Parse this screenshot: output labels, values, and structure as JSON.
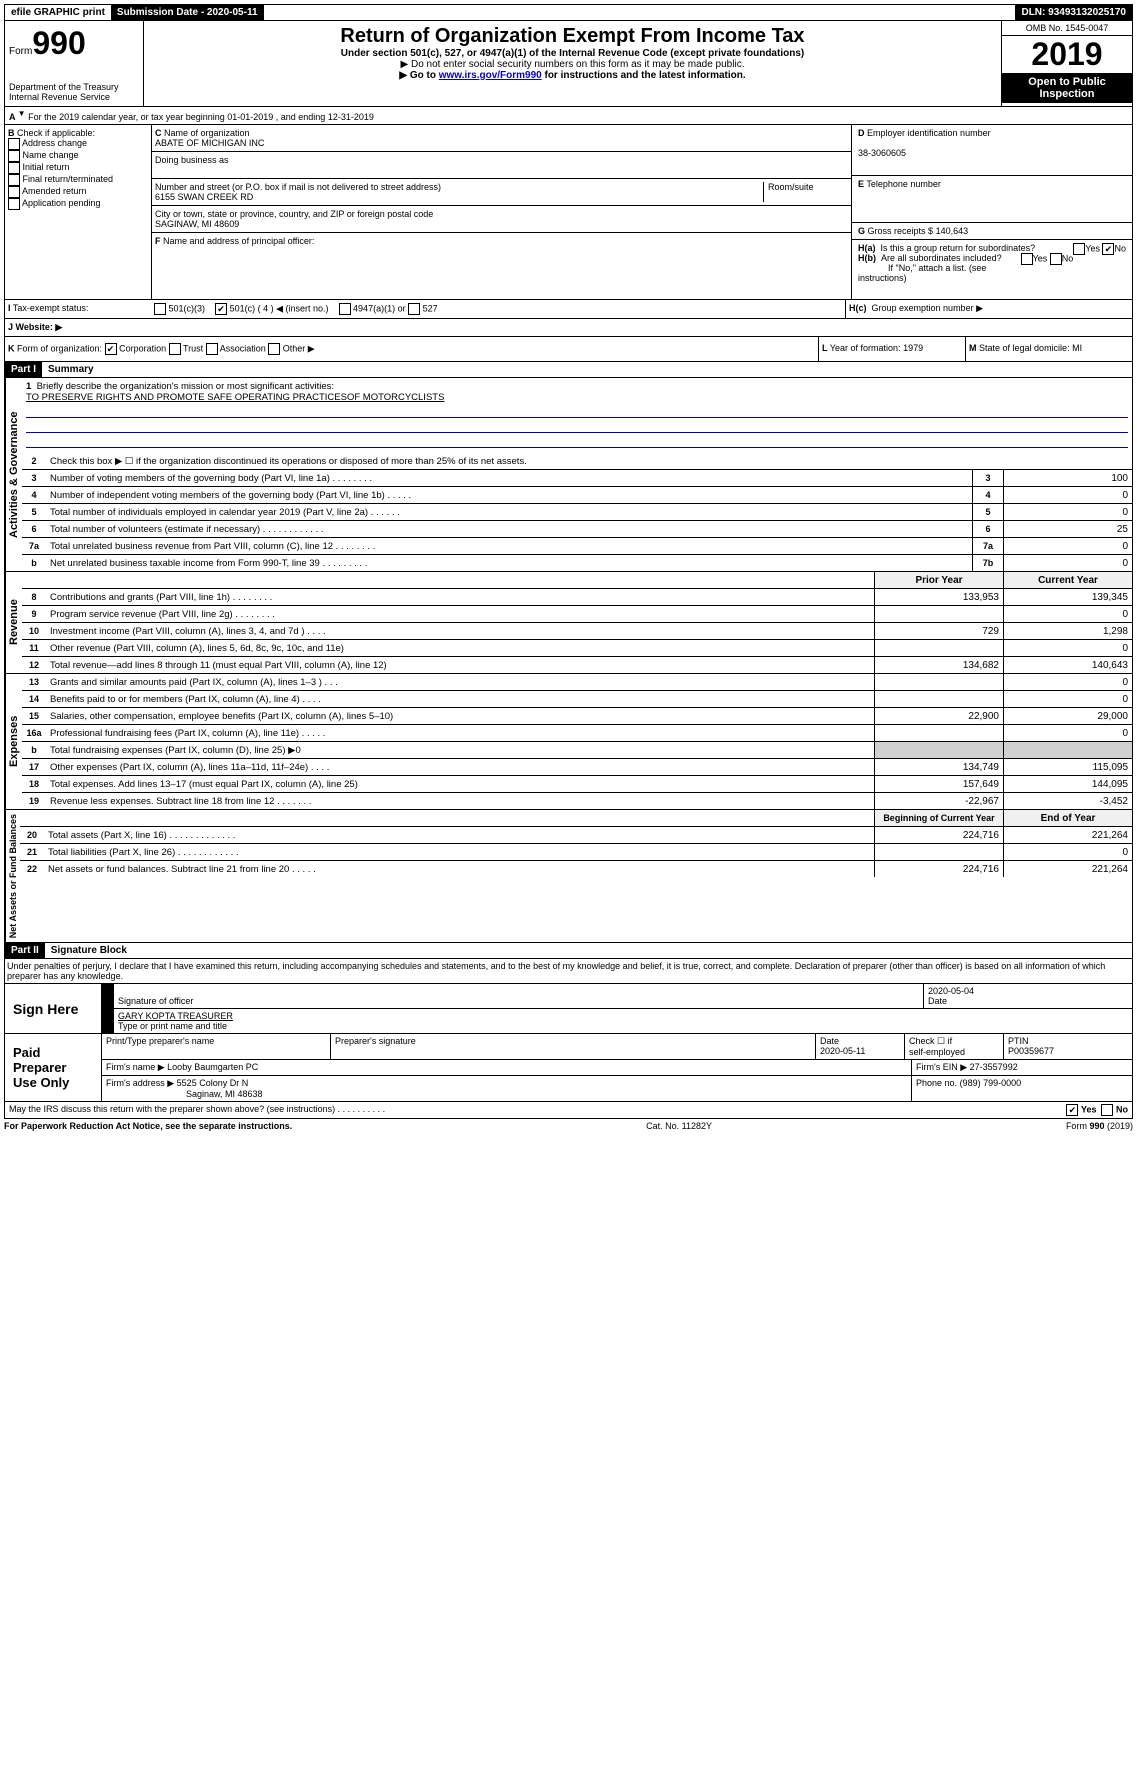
{
  "top": {
    "efile": "efile GRAPHIC print",
    "sub_label": "Submission Date - 2020-05-11",
    "dln": "DLN: 93493132025170"
  },
  "header": {
    "form_prefix": "Form",
    "form_num": "990",
    "dept": "Department of the Treasury",
    "irs": "Internal Revenue Service",
    "title": "Return of Organization Exempt From Income Tax",
    "subtitle": "Under section 501(c), 527, or 4947(a)(1) of the Internal Revenue Code (except private foundations)",
    "warn": "▶ Do not enter social security numbers on this form as it may be made public.",
    "goto_pre": "▶ Go to ",
    "goto_link": "www.irs.gov/Form990",
    "goto_post": " for instructions and the latest information.",
    "omb": "OMB No. 1545-0047",
    "year": "2019",
    "open": "Open to Public Inspection"
  },
  "A": {
    "text": "For the 2019 calendar year, or tax year beginning 01-01-2019   , and ending 12-31-2019"
  },
  "B": {
    "label": "Check if applicable:",
    "opts": [
      "Address change",
      "Name change",
      "Initial return",
      "Final return/terminated",
      "Amended return",
      "Application pending"
    ]
  },
  "C": {
    "name_label": "Name of organization",
    "name": "ABATE OF MICHIGAN INC",
    "dba_label": "Doing business as",
    "addr_label": "Number and street (or P.O. box if mail is not delivered to street address)",
    "room": "Room/suite",
    "addr": "6155 SWAN CREEK RD",
    "city_label": "City or town, state or province, country, and ZIP or foreign postal code",
    "city": "SAGINAW, MI  48609"
  },
  "D": {
    "label": "Employer identification number",
    "val": "38-3060605"
  },
  "E": {
    "label": "Telephone number"
  },
  "F": {
    "label": "Name and address of principal officer:"
  },
  "G": {
    "label": "Gross receipts $",
    "val": "140,643"
  },
  "H": {
    "a": "Is this a group return for subordinates?",
    "b": "Are all subordinates included?",
    "b_note": "If \"No,\" attach a list. (see instructions)",
    "c": "Group exemption number ▶"
  },
  "I": {
    "label": "Tax-exempt status:",
    "o1": "501(c)(3)",
    "o2": "501(c) ( 4 ) ◀ (insert no.)",
    "o3": "4947(a)(1) or",
    "o4": "527"
  },
  "J": {
    "label": "Website: ▶"
  },
  "K": {
    "label": "Form of organization:",
    "o1": "Corporation",
    "o2": "Trust",
    "o3": "Association",
    "o4": "Other ▶"
  },
  "L": {
    "label": "Year of formation:",
    "val": "1979"
  },
  "M": {
    "label": "State of legal domicile:",
    "val": "MI"
  },
  "part1": {
    "label": "Part I",
    "title": "Summary",
    "side_gov": "Activities & Governance",
    "side_rev": "Revenue",
    "side_exp": "Expenses",
    "side_net": "Net Assets or Fund Balances",
    "l1": "Briefly describe the organization's mission or most significant activities:",
    "mission": "TO PRESERVE RIGHTS AND PROMOTE SAFE OPERATING PRACTICESOF MOTORCYCLISTS",
    "l2": "Check this box ▶ ☐  if the organization discontinued its operations or disposed of more than 25% of its net assets.",
    "rows_gov": [
      {
        "n": "3",
        "t": "Number of voting members of the governing body (Part VI, line 1a)  .   .   .   .   .   .   .   .",
        "nb": "3",
        "v": "100"
      },
      {
        "n": "4",
        "t": "Number of independent voting members of the governing body (Part VI, line 1b)  .   .   .   .   .",
        "nb": "4",
        "v": "0"
      },
      {
        "n": "5",
        "t": "Total number of individuals employed in calendar year 2019 (Part V, line 2a)  .   .   .   .   .   .",
        "nb": "5",
        "v": "0"
      },
      {
        "n": "6",
        "t": "Total number of volunteers (estimate if necessary)  .   .   .   .   .   .   .   .   .   .   .   .",
        "nb": "6",
        "v": "25"
      },
      {
        "n": "7a",
        "t": "Total unrelated business revenue from Part VIII, column (C), line 12  .   .   .   .   .   .   .   .",
        "nb": "7a",
        "v": "0"
      },
      {
        "n": "b",
        "t": "Net unrelated business taxable income from Form 990-T, line 39  .   .   .   .   .   .   .   .   .",
        "nb": "7b",
        "v": "0"
      }
    ],
    "hdr_prior": "Prior Year",
    "hdr_curr": "Current Year",
    "rows_rev": [
      {
        "n": "8",
        "t": "Contributions and grants (Part VIII, line 1h)  .   .   .   .   .   .   .   .",
        "p": "133,953",
        "c": "139,345"
      },
      {
        "n": "9",
        "t": "Program service revenue (Part VIII, line 2g)  .   .   .   .   .   .   .   .",
        "p": "",
        "c": "0"
      },
      {
        "n": "10",
        "t": "Investment income (Part VIII, column (A), lines 3, 4, and 7d )  .   .   .   .",
        "p": "729",
        "c": "1,298"
      },
      {
        "n": "11",
        "t": "Other revenue (Part VIII, column (A), lines 5, 6d, 8c, 9c, 10c, and 11e)",
        "p": "",
        "c": "0"
      },
      {
        "n": "12",
        "t": "Total revenue—add lines 8 through 11 (must equal Part VIII, column (A), line 12)",
        "p": "134,682",
        "c": "140,643"
      }
    ],
    "rows_exp": [
      {
        "n": "13",
        "t": "Grants and similar amounts paid (Part IX, column (A), lines 1–3 )  .   .   .",
        "p": "",
        "c": "0"
      },
      {
        "n": "14",
        "t": "Benefits paid to or for members (Part IX, column (A), line 4)  .   .   .   .",
        "p": "",
        "c": "0"
      },
      {
        "n": "15",
        "t": "Salaries, other compensation, employee benefits (Part IX, column (A), lines 5–10)",
        "p": "22,900",
        "c": "29,000"
      },
      {
        "n": "16a",
        "t": "Professional fundraising fees (Part IX, column (A), line 11e)  .   .   .   .   .",
        "p": "",
        "c": "0"
      },
      {
        "n": "b",
        "t": "Total fundraising expenses (Part IX, column (D), line 25) ▶0",
        "p": "GRAY",
        "c": "GRAY"
      },
      {
        "n": "17",
        "t": "Other expenses (Part IX, column (A), lines 11a–11d, 11f–24e)  .   .   .   .",
        "p": "134,749",
        "c": "115,095"
      },
      {
        "n": "18",
        "t": "Total expenses. Add lines 13–17 (must equal Part IX, column (A), line 25)",
        "p": "157,649",
        "c": "144,095"
      },
      {
        "n": "19",
        "t": "Revenue less expenses. Subtract line 18 from line 12  .   .   .   .   .   .   .",
        "p": "-22,967",
        "c": "-3,452"
      }
    ],
    "hdr_begin": "Beginning of Current Year",
    "hdr_end": "End of Year",
    "rows_net": [
      {
        "n": "20",
        "t": "Total assets (Part X, line 16)  .   .   .   .   .   .   .   .   .   .   .   .   .",
        "p": "224,716",
        "c": "221,264"
      },
      {
        "n": "21",
        "t": "Total liabilities (Part X, line 26)  .   .   .   .   .   .   .   .   .   .   .   .",
        "p": "",
        "c": "0"
      },
      {
        "n": "22",
        "t": "Net assets or fund balances. Subtract line 21 from line 20  .   .   .   .   .",
        "p": "224,716",
        "c": "221,264"
      }
    ]
  },
  "part2": {
    "label": "Part II",
    "title": "Signature Block",
    "decl": "Under penalties of perjury, I declare that I have examined this return, including accompanying schedules and statements, and to the best of my knowledge and belief, it is true, correct, and complete. Declaration of preparer (other than officer) is based on all information of which preparer has any knowledge."
  },
  "sign": {
    "label": "Sign Here",
    "sig_label": "Signature of officer",
    "date": "2020-05-04",
    "date_label": "Date",
    "name": "GARY KOPTA  TREASURER",
    "name_label": "Type or print name and title"
  },
  "prep": {
    "label": "Paid Preparer Use Only",
    "h1": "Print/Type preparer's name",
    "h2": "Preparer's signature",
    "h3": "Date",
    "date": "2020-05-11",
    "h4_a": "Check ☐ if",
    "h4_b": "self-employed",
    "h5": "PTIN",
    "ptin": "P00359677",
    "firm_label": "Firm's name    ▶",
    "firm": "Looby Baumgarten PC",
    "ein_label": "Firm's EIN ▶",
    "ein": "27-3557992",
    "addr_label": "Firm's address ▶",
    "addr1": "5525 Colony Dr N",
    "addr2": "Saginaw, MI  48638",
    "phone_label": "Phone no.",
    "phone": "(989) 799-0000"
  },
  "footer": {
    "discuss": "May the IRS discuss this return with the preparer shown above? (see instructions)  .   .   .   .   .   .   .   .   .   .",
    "yes": "Yes",
    "no": "No",
    "pra": "For Paperwork Reduction Act Notice, see the separate instructions.",
    "cat": "Cat. No. 11282Y",
    "form": "Form 990 (2019)"
  }
}
